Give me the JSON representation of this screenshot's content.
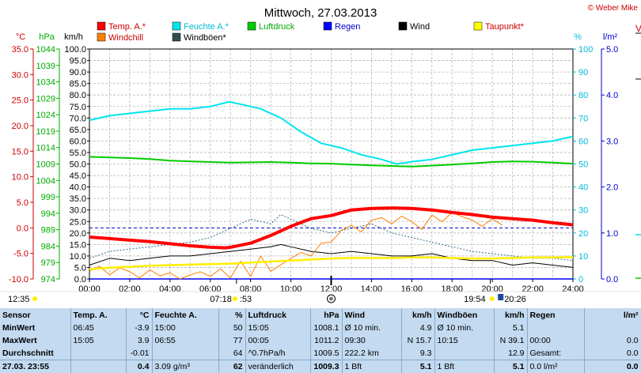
{
  "header": {
    "title": "Mittwoch, 27.03.2013",
    "copyright": "© Weber Mike"
  },
  "chart_data": {
    "type": "line",
    "title": "Mittwoch, 27.03.2013",
    "x_ticks": [
      "00:00",
      "02:00",
      "04:00",
      "06:00",
      "08:00",
      "10:00",
      "12:00",
      "14:00",
      "16:00",
      "18:00",
      "20:00",
      "22:00",
      "24:00"
    ],
    "axes": {
      "temp": {
        "unit": "°C",
        "range": [
          -10,
          35
        ],
        "ticks": [
          "35.0",
          "30.0",
          "25.0",
          "20.0",
          "15.0",
          "10.0",
          "5.0",
          "0.0",
          "-5.0",
          "-10.0"
        ],
        "color": "#ff0000"
      },
      "pressure": {
        "unit": "hPa",
        "range": [
          974,
          1044
        ],
        "ticks": [
          "1044",
          "1039",
          "1034",
          "1029",
          "1024",
          "1019",
          "1014",
          "1009",
          "1004",
          "999",
          "994",
          "989",
          "984",
          "979",
          "974"
        ],
        "color": "#00cc00"
      },
      "wind": {
        "unit": "km/h",
        "range": [
          0,
          100
        ],
        "ticks": [
          "100.0",
          "95.0",
          "90.0",
          "85.0",
          "80.0",
          "75.0",
          "70.0",
          "65.0",
          "60.0",
          "55.0",
          "50.0",
          "45.0",
          "40.0",
          "35.0",
          "30.0",
          "25.0",
          "20.0",
          "15.0",
          "10.0",
          "5.0",
          "0.0"
        ],
        "color": "#000000"
      },
      "humidity": {
        "unit": "%",
        "range": [
          0,
          100
        ],
        "ticks": [
          "100",
          "90",
          "80",
          "70",
          "60",
          "50",
          "40",
          "30",
          "20",
          "10",
          "0"
        ],
        "color": "#00dddd"
      },
      "rain": {
        "unit": "l/m²",
        "range": [
          0,
          5
        ],
        "ticks": [
          "5.0",
          "4.0",
          "3.0",
          "2.0",
          "1.0",
          "0.0"
        ],
        "color": "#0000cc"
      }
    },
    "legend": [
      {
        "name": "Temp. A.*",
        "color": "#ff0000"
      },
      {
        "name": "Feuchte A.*",
        "color": "#00e5ee"
      },
      {
        "name": "Luftdruck",
        "color": "#00cc00"
      },
      {
        "name": "Regen",
        "color": "#0000ff"
      },
      {
        "name": "Wind",
        "color": "#000000"
      },
      {
        "name": "Taupunkt*",
        "color": "#ffff00"
      },
      {
        "name": "Windchill",
        "color": "#ff7f00"
      },
      {
        "name": "Windböen*",
        "color": "#2f4f4f"
      }
    ],
    "series": [
      {
        "name": "Temp. A.*",
        "axis": "temp",
        "x": [
          0,
          1,
          2,
          3,
          4,
          5,
          6,
          6.75,
          7,
          8,
          9,
          10,
          11,
          12,
          13,
          14,
          15.08,
          16,
          17,
          18,
          19,
          20,
          21,
          22,
          23,
          24
        ],
        "values": [
          -1.8,
          -2.1,
          -2.4,
          -2.7,
          -3.1,
          -3.5,
          -3.8,
          -3.9,
          -3.8,
          -3.0,
          -1.5,
          0.3,
          1.8,
          2.4,
          3.5,
          3.8,
          3.9,
          3.8,
          3.5,
          3.0,
          2.6,
          2.1,
          1.8,
          1.5,
          1.0,
          0.6
        ]
      },
      {
        "name": "Feuchte A.*",
        "axis": "humidity",
        "x": [
          0,
          1,
          2,
          3,
          4,
          5,
          6,
          6.92,
          7.5,
          8.5,
          9.5,
          10.5,
          11.5,
          12.5,
          13.5,
          14.5,
          15.25,
          16,
          17,
          18,
          19,
          20,
          21,
          22,
          23,
          24
        ],
        "values": [
          69,
          71,
          72,
          73,
          74,
          74,
          75,
          77,
          76,
          74,
          70,
          64,
          59,
          57,
          54,
          52,
          50,
          51,
          52,
          54,
          56,
          57,
          58,
          59,
          60,
          62
        ]
      },
      {
        "name": "Luftdruck",
        "axis": "pressure",
        "x": [
          0,
          1,
          2,
          3,
          4,
          5,
          6,
          7,
          8,
          9,
          10,
          11,
          12,
          13,
          14,
          15,
          16,
          17,
          18,
          19,
          20,
          21,
          22,
          23,
          24
        ],
        "values": [
          1011.2,
          1011.0,
          1010.8,
          1010.5,
          1010.0,
          1009.8,
          1009.6,
          1009.4,
          1009.5,
          1009.6,
          1009.4,
          1009.2,
          1009.1,
          1008.8,
          1008.6,
          1008.4,
          1008.2,
          1008.5,
          1008.8,
          1009.2,
          1009.6,
          1009.8,
          1009.7,
          1009.4,
          1009.1
        ]
      },
      {
        "name": "Wind",
        "axis": "wind",
        "x": [
          0,
          1,
          2,
          3,
          4,
          5,
          6,
          7,
          8,
          9,
          9.5,
          10,
          11,
          12,
          13,
          14,
          15,
          16,
          17,
          18,
          19,
          20,
          21,
          22,
          23,
          24
        ],
        "values": [
          6,
          9,
          8,
          9,
          10,
          10,
          11,
          12,
          13,
          14,
          15,
          14,
          12,
          11,
          12,
          11,
          10,
          10,
          11,
          9,
          8,
          8,
          6,
          7,
          6,
          5
        ]
      },
      {
        "name": "Windböen*",
        "axis": "wind",
        "x": [
          0,
          1,
          2,
          3,
          4,
          5,
          6,
          7,
          8,
          9,
          9.5,
          10,
          11,
          12,
          13,
          14,
          15,
          16,
          17,
          18,
          19,
          20,
          21,
          22,
          23,
          24
        ],
        "values": [
          9,
          12,
          13,
          14,
          15,
          16,
          18,
          22,
          26,
          24,
          28,
          26,
          22,
          20,
          22,
          24,
          20,
          18,
          16,
          14,
          12,
          11,
          10,
          9,
          9,
          8
        ]
      },
      {
        "name": "Taupunkt*",
        "axis": "temp",
        "x": [
          0,
          1,
          2,
          3,
          4,
          5,
          6,
          7,
          8,
          9,
          10,
          11,
          12,
          13,
          14,
          15,
          16,
          17,
          18,
          19,
          20,
          21,
          22,
          23,
          24
        ],
        "values": [
          -8.1,
          -7.8,
          -7.6,
          -7.4,
          -7.3,
          -7.2,
          -7.1,
          -7.0,
          -6.8,
          -6.6,
          -6.4,
          -6.2,
          -6.0,
          -5.9,
          -5.9,
          -5.9,
          -5.8,
          -5.8,
          -5.9,
          -6.0,
          -6.0,
          -5.9,
          -5.8,
          -5.8,
          -5.7
        ]
      },
      {
        "name": "Windchill",
        "axis": "temp",
        "x": [
          0,
          0.5,
          1,
          1.5,
          2,
          2.5,
          3,
          3.5,
          4,
          4.5,
          5,
          5.5,
          6,
          6.5,
          7,
          7.5,
          8,
          8.5,
          9,
          9.5,
          10,
          10.5,
          11,
          11.5,
          12,
          12.5,
          13,
          13.5,
          14,
          14.5,
          15,
          15.5,
          16,
          16.5,
          17,
          17.5,
          18,
          18.5,
          19,
          19.5,
          20,
          20.5
        ],
        "values": [
          -8.5,
          -7.5,
          -9.2,
          -7.8,
          -8.6,
          -9.8,
          -8.2,
          -9.4,
          -8.8,
          -10.0,
          -9.2,
          -8.6,
          -9.5,
          -8.0,
          -9.8,
          -6.5,
          -9.5,
          -5.5,
          -8.5,
          -7.2,
          -6.0,
          -4.8,
          -5.5,
          -3.0,
          -2.8,
          -0.5,
          0.5,
          -0.8,
          1.5,
          2.0,
          0.8,
          2.3,
          1.2,
          -0.3,
          2.5,
          1.2,
          3.0,
          2.2,
          1.5,
          0.3,
          1.8,
          0.5
        ]
      },
      {
        "name": "Regen",
        "axis": "rain",
        "x": [
          0,
          24
        ],
        "values": [
          0.0,
          0.0
        ]
      }
    ],
    "reference_lines": [
      {
        "axis": "temp",
        "value": 0.0,
        "color": "#0000cc",
        "style": "dashed"
      }
    ],
    "markers": {
      "left_time": "12:35",
      "sunrise": "07:18",
      "sunrise_small": ":53",
      "sunset": "19:54",
      "sunset2": "20:26"
    },
    "grid": true
  },
  "stats": {
    "columns": [
      "Sensor",
      "Temp. A.",
      "°C",
      "Feuchte A.",
      "%",
      "Luftdruck",
      "hPa",
      "Wind",
      "km/h",
      "Windböen",
      "km/h",
      "Regen",
      "l/m²"
    ],
    "rows": [
      {
        "label": "MinWert",
        "cells": [
          "06:45",
          "-3.9",
          "15:00",
          "50",
          "15:05",
          "1008.1",
          "Ø 10 min.",
          "4.9",
          "Ø 10 min.",
          "5.1",
          "",
          ""
        ]
      },
      {
        "label": "MaxWert",
        "cells": [
          "15:05",
          "3.9",
          "06:55",
          "77",
          "00:05",
          "1011.2",
          "09:30",
          "N 15.7",
          "10:15",
          "N 39.1",
          "00:00",
          "0.0"
        ]
      },
      {
        "label": "Durchschnitt",
        "cells": [
          "",
          "-0.01",
          "",
          "64",
          "^0.7hPa/h",
          "1009.5",
          "222.2 km",
          "9.3",
          "",
          "12.9",
          "Gesamt:",
          "0.0"
        ]
      },
      {
        "label": "27.03. 23:55",
        "cells": [
          "",
          "0.4",
          "3.09 g/m³",
          "62",
          "veränderlich",
          "1009.3",
          "1 Bft",
          "5.1",
          "1 Bft",
          "5.1",
          "0.0 l/m²",
          "0.0"
        ]
      }
    ]
  }
}
